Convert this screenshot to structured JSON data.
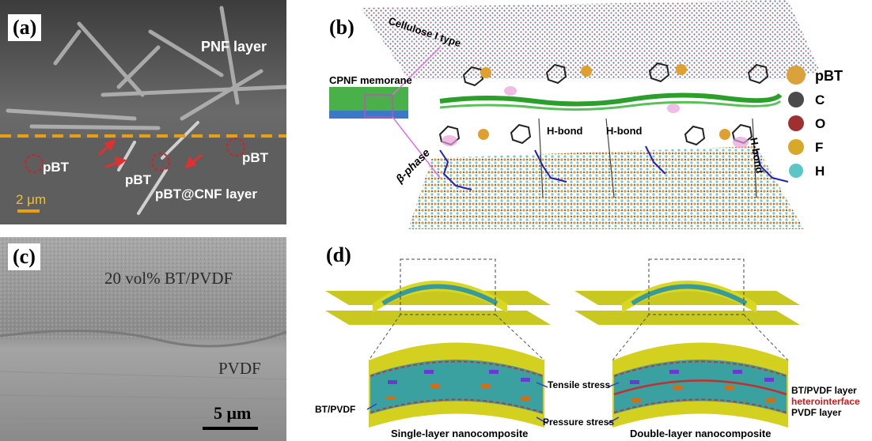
{
  "figure": {
    "panel_a": {
      "label": "(a)",
      "pnf_layer": "PNF layer",
      "pbt_labels": [
        "pBT",
        "pBT",
        "pBT"
      ],
      "pbt_cnf_layer": "pBT@CNF layer",
      "scale_bar": "2 μm"
    },
    "panel_b": {
      "label": "(b)",
      "cellulose": "Cellulose I type",
      "cpnf": "CPNF memorane",
      "hbonds": [
        "H-bond",
        "H-bond",
        "H-bond"
      ],
      "beta_phase": "β-phase",
      "legend": [
        {
          "label": "pBT",
          "color": "#d9a23a"
        },
        {
          "label": "C",
          "color": "#4a4a4a"
        },
        {
          "label": "O",
          "color": "#a03030"
        },
        {
          "label": "F",
          "color": "#d8a828"
        },
        {
          "label": "H",
          "color": "#5cc6c6"
        }
      ]
    },
    "panel_c": {
      "label": "(c)",
      "top_layer": "20 vol% BT/PVDF",
      "bottom_layer": "PVDF",
      "scale_bar": "5 μm"
    },
    "panel_d": {
      "label": "(d)",
      "bt_pvdf_left": "BT/PVDF",
      "tensile": "Tensile stress",
      "pressure": "Pressure stress",
      "single_caption": "Single-layer nanocomposite",
      "double_caption": "Double-layer nanocomposite",
      "bt_pvdf_layer": "BT/PVDF layer",
      "heterointerface": "heterointerface",
      "pvdf_layer": "PVDF layer"
    }
  }
}
